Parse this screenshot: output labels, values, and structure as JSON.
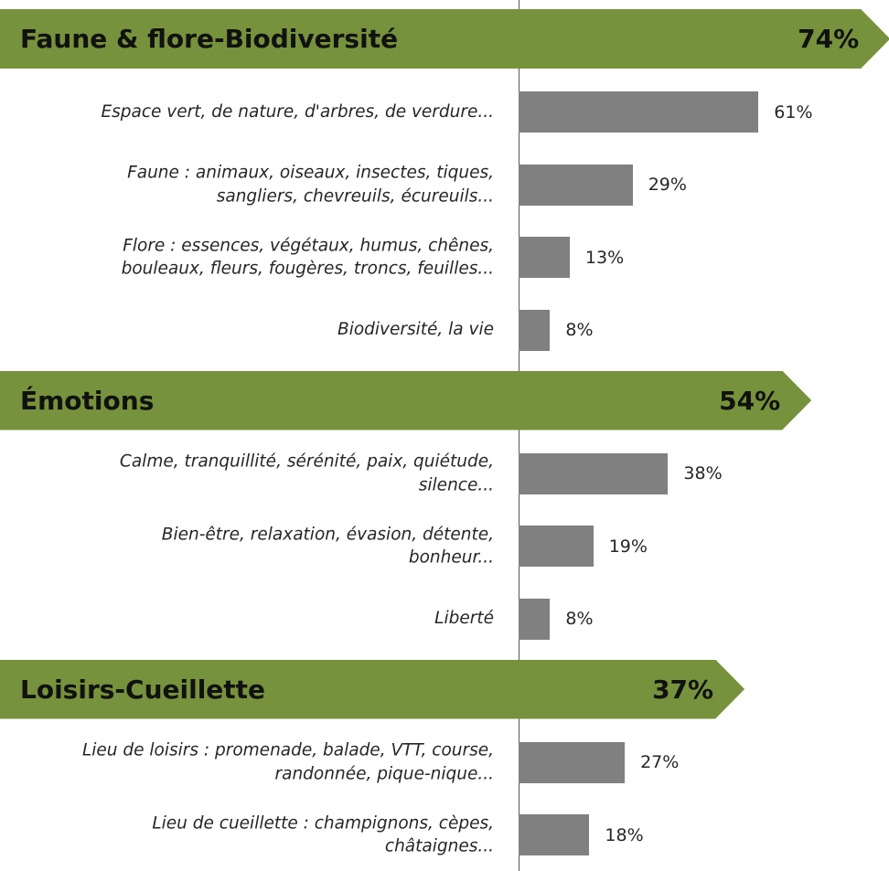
{
  "chart_data": {
    "type": "bar",
    "orientation": "horizontal",
    "xlim": [
      0,
      100
    ],
    "bar_color": "#808080",
    "header_color": "#76923c",
    "groups": [
      {
        "name": "Faune & flore-Biodiversité",
        "value": 74,
        "value_label": "74%",
        "categories": [
          "Espace vert, de nature, d'arbres, de verdure...",
          "Faune : animaux, oiseaux, insectes, tiques,\nsangliers, chevreuils, écureuils...",
          "Flore : essences, végétaux, humus, chênes,\nbouleaux, fleurs, fougères, troncs, feuilles...",
          "Biodiversité, la vie"
        ],
        "values": [
          61,
          29,
          13,
          8
        ],
        "value_labels": [
          "61%",
          "29%",
          "13%",
          "8%"
        ]
      },
      {
        "name": "Émotions",
        "value": 54,
        "value_label": "54%",
        "categories": [
          "Calme, tranquillité, sérénité, paix, quiétude,\nsilence...",
          "Bien-être, relaxation, évasion, détente,\nbonheur...",
          "Liberté"
        ],
        "values": [
          38,
          19,
          8
        ],
        "value_labels": [
          "38%",
          "19%",
          "8%"
        ]
      },
      {
        "name": "Loisirs-Cueillette",
        "value": 37,
        "value_label": "37%",
        "categories": [
          "Lieu de loisirs : promenade, balade, VTT, course,\nrandonnée, pique-nique...",
          "Lieu de cueillette : champignons, cèpes,\nchâtaignes..."
        ],
        "values": [
          27,
          18
        ],
        "value_labels": [
          "27%",
          "18%"
        ]
      }
    ]
  }
}
